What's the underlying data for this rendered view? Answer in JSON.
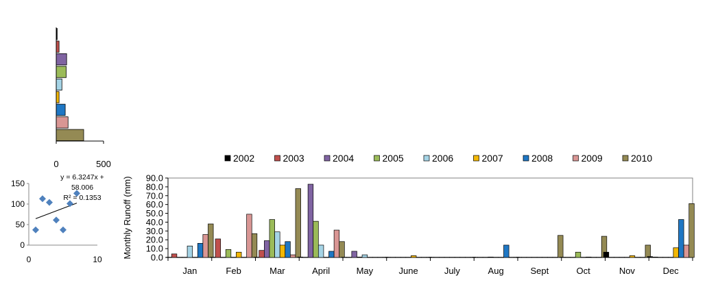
{
  "colors": {
    "2002": "#000000",
    "2003": "#c0504d",
    "2004": "#8064a2",
    "2005": "#9bbb59",
    "2006": "#a5d4e6",
    "2007": "#f2b705",
    "2008": "#1f77c4",
    "2009": "#d99694",
    "2010": "#948a54",
    "scatter_point": "#4f81bd",
    "axis": "#000000",
    "grid_text": "#000000"
  },
  "chart_data": [
    {
      "type": "bar",
      "orientation": "horizontal",
      "series": [
        {
          "name": "2002",
          "value": 10
        },
        {
          "name": "2003",
          "value": 30
        },
        {
          "name": "2004",
          "value": 110
        },
        {
          "name": "2005",
          "value": 105
        },
        {
          "name": "2006",
          "value": 60
        },
        {
          "name": "2007",
          "value": 30
        },
        {
          "name": "2008",
          "value": 95
        },
        {
          "name": "2009",
          "value": 125
        },
        {
          "name": "2010",
          "value": 290
        }
      ],
      "xlim": [
        0,
        500
      ],
      "xticks": [
        "0",
        "500"
      ]
    },
    {
      "type": "scatter",
      "points": [
        {
          "x": 1,
          "y": 37
        },
        {
          "x": 2,
          "y": 113
        },
        {
          "x": 3,
          "y": 104
        },
        {
          "x": 4,
          "y": 61
        },
        {
          "x": 5,
          "y": 37
        },
        {
          "x": 6,
          "y": 101
        },
        {
          "x": 7,
          "y": 126
        }
      ],
      "trendline": {
        "slope": 6.3247,
        "intercept": 58.006
      },
      "annotation": [
        "y = 6.3247x +",
        "58.006",
        "R² = 0.1353"
      ],
      "xlim": [
        0,
        10
      ],
      "ylim": [
        0,
        150
      ],
      "xticks": [
        "0",
        "10"
      ],
      "yticks": [
        "0",
        "50",
        "100",
        "150"
      ]
    },
    {
      "type": "bar",
      "ylabel": "Monthly  Runoff (mm)",
      "ylim": [
        0,
        90
      ],
      "yticks": [
        "0.0",
        "10.0",
        "20.0",
        "30.0",
        "40.0",
        "50.0",
        "60.0",
        "70.0",
        "80.0",
        "90.0"
      ],
      "categories": [
        "Jan",
        "Feb",
        "Mar",
        "April",
        "May",
        "June",
        "July",
        "Aug",
        "Sept",
        "Oct",
        "Nov",
        "Dec"
      ],
      "legend_position": "top",
      "series": [
        {
          "name": "2002",
          "values": [
            0.3,
            0.3,
            0.3,
            0.5,
            0.3,
            0.3,
            0.3,
            0.3,
            0.3,
            0.3,
            6.0,
            1.0
          ]
        },
        {
          "name": "2003",
          "values": [
            4.0,
            21.0,
            8.0,
            0.3,
            0.3,
            0.3,
            0.3,
            0.3,
            0.3,
            0.3,
            0.3,
            0.5
          ]
        },
        {
          "name": "2004",
          "values": [
            0.3,
            0.3,
            19.0,
            83.0,
            7.0,
            0.3,
            0.3,
            0.3,
            0.3,
            0.3,
            0.3,
            0.3
          ]
        },
        {
          "name": "2005",
          "values": [
            0.3,
            9.0,
            43.0,
            41.0,
            0.5,
            0.3,
            0.3,
            0.5,
            0.3,
            6.0,
            0.3,
            0.3
          ]
        },
        {
          "name": "2006",
          "values": [
            13.0,
            0.3,
            29.0,
            14.0,
            3.0,
            0.3,
            0.3,
            0.3,
            0.3,
            0.3,
            0.3,
            0.3
          ]
        },
        {
          "name": "2007",
          "values": [
            0.3,
            6.0,
            14.0,
            0.3,
            0.3,
            2.0,
            0.3,
            0.3,
            0.3,
            0.5,
            2.0,
            11.0
          ]
        },
        {
          "name": "2008",
          "values": [
            16.0,
            0.3,
            18.0,
            7.0,
            0.3,
            0.3,
            0.3,
            14.0,
            0.3,
            0.3,
            0.3,
            43.0
          ]
        },
        {
          "name": "2009",
          "values": [
            26.0,
            49.0,
            3.0,
            31.0,
            0.3,
            0.3,
            0.3,
            0.3,
            0.3,
            0.3,
            0.3,
            14.0
          ]
        },
        {
          "name": "2010",
          "values": [
            38.0,
            27.0,
            78.0,
            18.0,
            0.3,
            0.3,
            0.3,
            0.3,
            25.0,
            24.0,
            14.0,
            61.0
          ]
        }
      ]
    }
  ]
}
